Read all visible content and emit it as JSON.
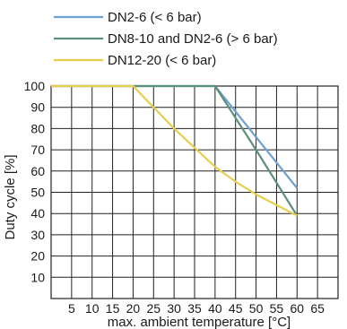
{
  "chart_data": {
    "type": "line",
    "xlabel": "max. ambient temperature [°C]",
    "ylabel": "Duty cycle [%]",
    "xlim": [
      0,
      70
    ],
    "ylim": [
      0,
      100
    ],
    "x_ticks": [
      5,
      10,
      15,
      20,
      25,
      30,
      35,
      40,
      45,
      50,
      55,
      60,
      65
    ],
    "y_ticks": [
      10,
      20,
      30,
      40,
      50,
      60,
      70,
      80,
      90,
      100
    ],
    "grid": true,
    "legend_position": "top",
    "series": [
      {
        "name": "DN2-6 (< 6 bar)",
        "color": "#6f9fd4",
        "x": [
          0,
          40,
          50,
          60
        ],
        "y": [
          100,
          100,
          76,
          52
        ]
      },
      {
        "name": "DN8-10 and DN2-6 (> 6 bar)",
        "color": "#5e8f7a",
        "x": [
          0,
          40,
          50,
          60
        ],
        "y": [
          100,
          100,
          70,
          39
        ]
      },
      {
        "name": "DN12-20 (< 6 bar)",
        "color": "#e6cf50",
        "x": [
          0,
          20,
          25,
          30,
          35,
          40,
          45,
          50,
          55,
          60
        ],
        "y": [
          100,
          100,
          90,
          80,
          71,
          62,
          55,
          49,
          44,
          39
        ]
      }
    ]
  }
}
